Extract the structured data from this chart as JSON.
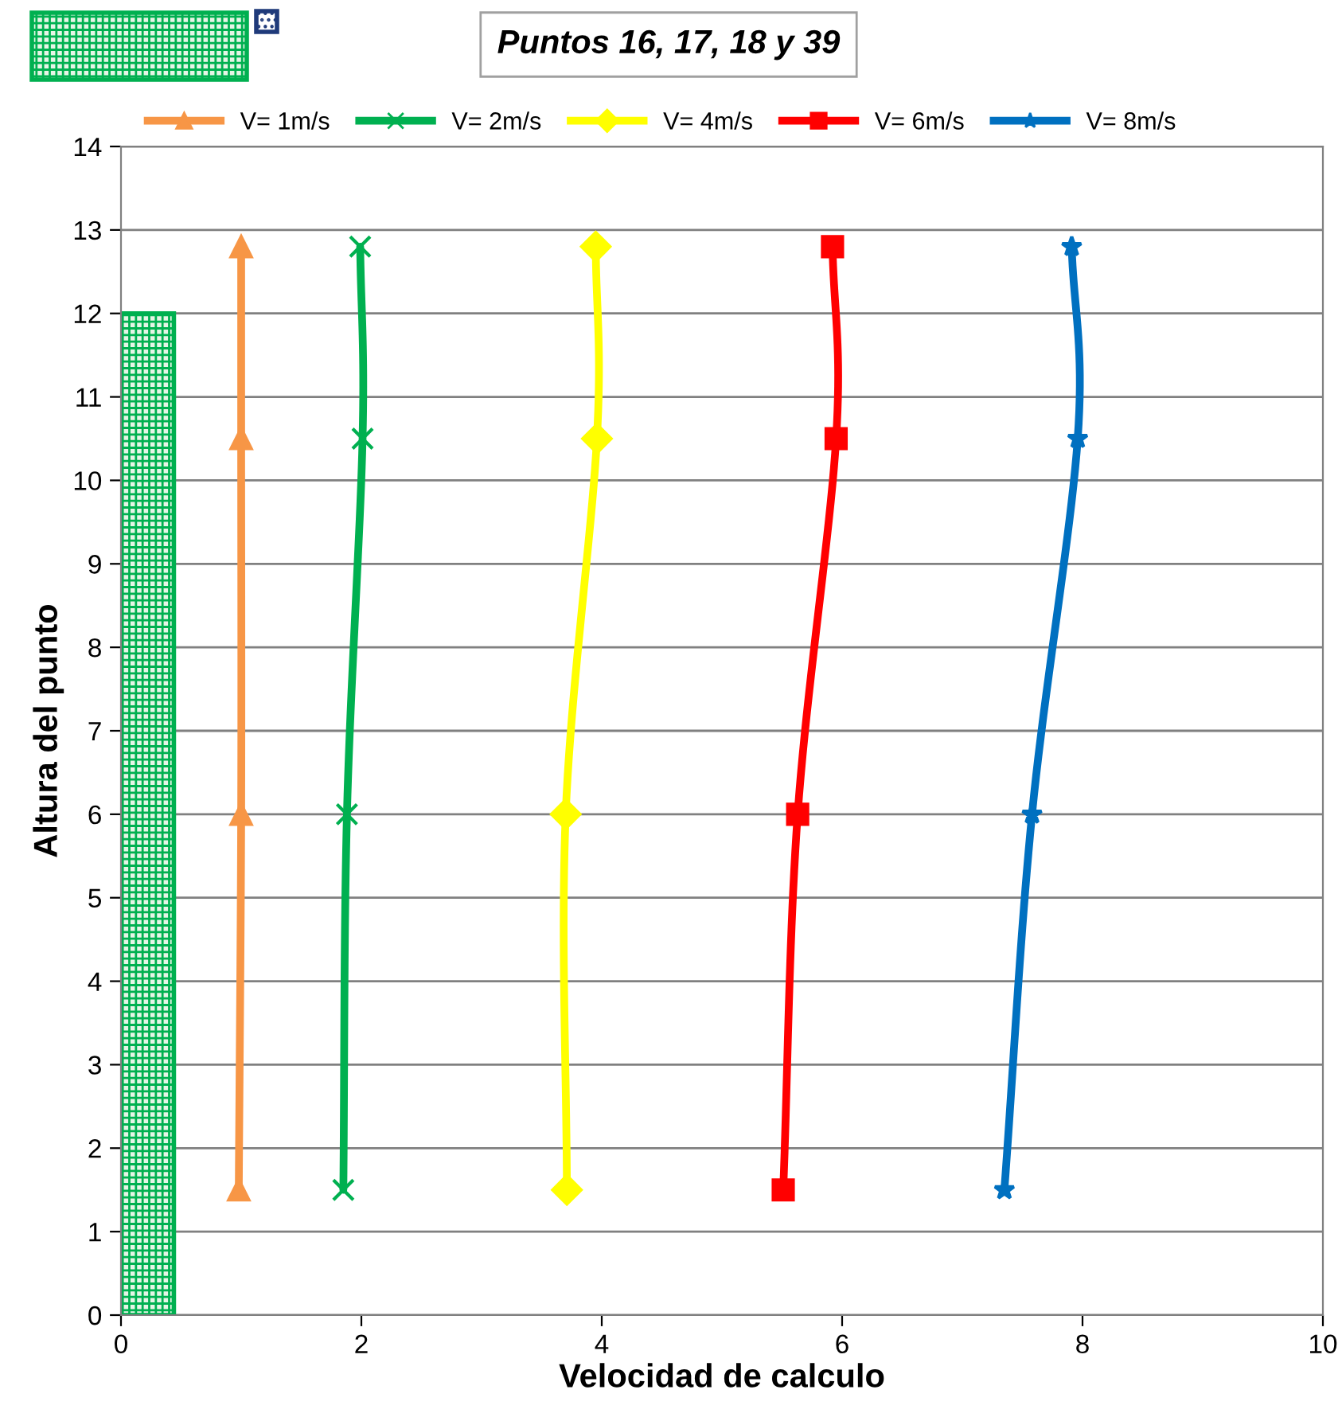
{
  "chart_data": {
    "type": "line",
    "title": "Puntos 16, 17, 18 y 39",
    "xlabel": "Velocidad de calculo",
    "ylabel": "Altura del punto",
    "xlim": [
      0,
      10
    ],
    "xticks": [
      0,
      2,
      4,
      6,
      8,
      10
    ],
    "ylim": [
      0,
      14
    ],
    "yticks": [
      0,
      1,
      2,
      3,
      4,
      5,
      6,
      7,
      8,
      9,
      10,
      11,
      12,
      13,
      14
    ],
    "grid": "y",
    "legend": "top",
    "series": [
      {
        "type": "bar",
        "color": "#00b050",
        "x": [
          0.22
        ],
        "values": [
          12
        ]
      },
      {
        "name": "V= 1m/s",
        "color": "#f79646",
        "marker": "triangle",
        "x": [
          0.98,
          1.0,
          1.0,
          1.0
        ],
        "values": [
          1.5,
          6,
          10.5,
          12.8
        ]
      },
      {
        "name": "V= 2m/s",
        "color": "#00b050",
        "marker": "cross",
        "x": [
          1.85,
          1.88,
          2.01,
          1.99
        ],
        "values": [
          1.5,
          6,
          10.5,
          12.8
        ]
      },
      {
        "name": "V= 4m/s",
        "color": "#ffff00",
        "marker": "diamond",
        "x": [
          3.71,
          3.7,
          3.96,
          3.95
        ],
        "values": [
          1.5,
          6,
          10.5,
          12.8
        ]
      },
      {
        "name": "V= 6m/s",
        "color": "#ff0000",
        "marker": "square",
        "x": [
          5.51,
          5.63,
          5.95,
          5.92
        ],
        "values": [
          1.5,
          6,
          10.5,
          12.8
        ]
      },
      {
        "name": "V= 8m/s",
        "color": "#0070c0",
        "marker": "star",
        "x": [
          7.35,
          7.58,
          7.96,
          7.91
        ],
        "values": [
          1.5,
          6,
          10.5,
          12.8
        ]
      }
    ]
  }
}
